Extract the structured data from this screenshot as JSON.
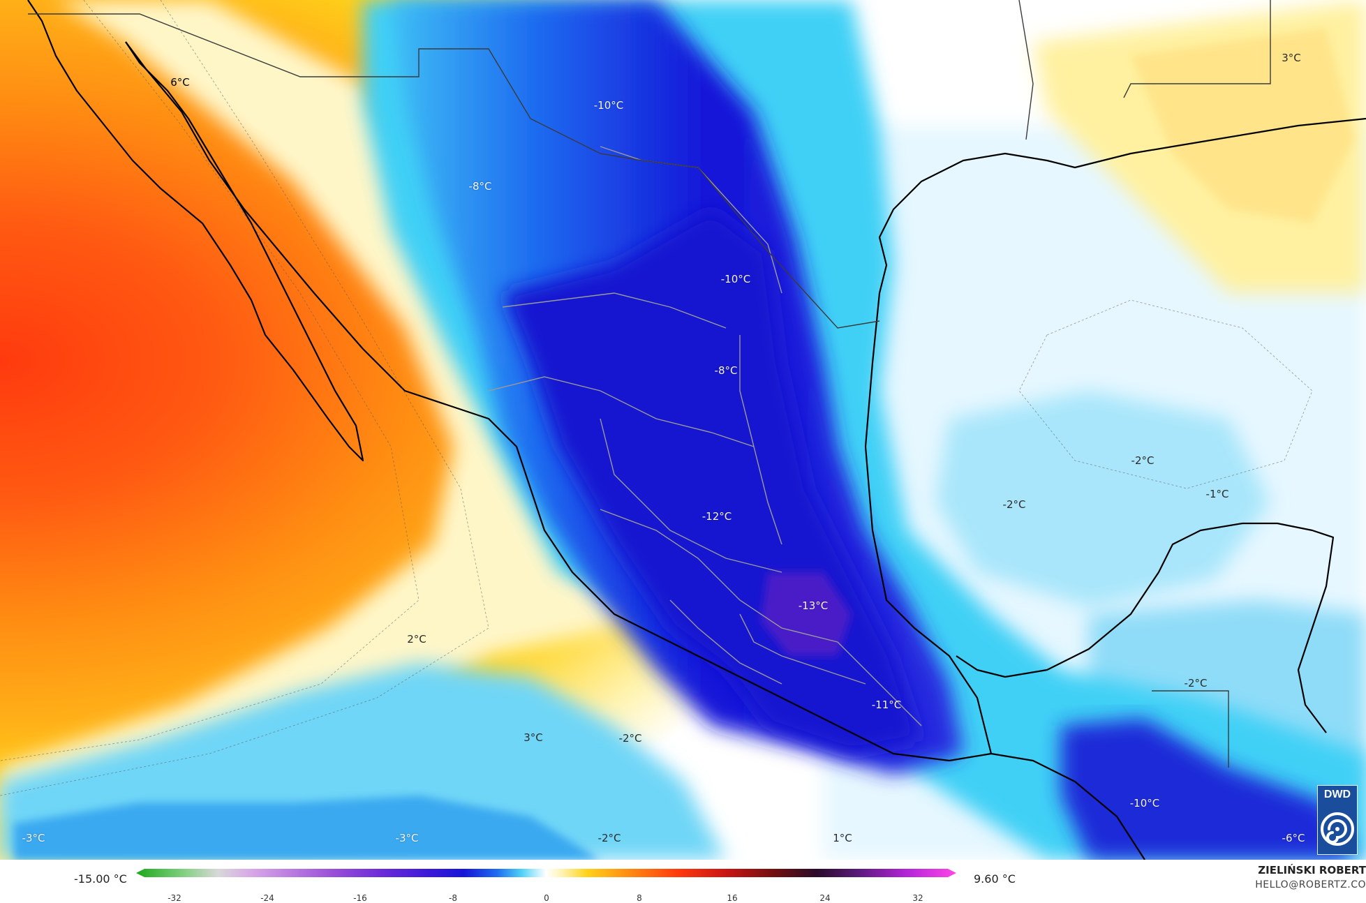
{
  "map": {
    "labels": [
      {
        "text": "6°C",
        "tone": "dark"
      },
      {
        "text": "-10°C",
        "tone": "light"
      },
      {
        "text": "-8°C",
        "tone": "light"
      },
      {
        "text": "-10°C",
        "tone": "light"
      },
      {
        "text": "-8°C",
        "tone": "light"
      },
      {
        "text": "-12°C",
        "tone": "light"
      },
      {
        "text": "-13°C",
        "tone": "light"
      },
      {
        "text": "-11°C",
        "tone": "light"
      },
      {
        "text": "-10°C",
        "tone": "light"
      },
      {
        "text": "-6°C",
        "tone": "light"
      },
      {
        "text": "3°C",
        "tone": "dark"
      },
      {
        "text": "-2°C",
        "tone": "dark"
      },
      {
        "text": "-2°C",
        "tone": "dark"
      },
      {
        "text": "-1°C",
        "tone": "dark"
      },
      {
        "text": "-2°C",
        "tone": "dark"
      },
      {
        "text": "2°C",
        "tone": "dark"
      },
      {
        "text": "3°C",
        "tone": "dark"
      },
      {
        "text": "-2°C",
        "tone": "dark"
      },
      {
        "text": "-2°C",
        "tone": "dark"
      },
      {
        "text": "1°C",
        "tone": "dark"
      },
      {
        "text": "-3°C",
        "tone": "light"
      },
      {
        "text": "-3°C",
        "tone": "light"
      }
    ]
  },
  "legend": {
    "min_label": "-15.00 °C",
    "max_label": "9.60 °C",
    "ticks": [
      "-32",
      "-24",
      "-16",
      "-8",
      "0",
      "8",
      "16",
      "24",
      "32"
    ]
  },
  "credits": {
    "author": "ZIELIŃSKI ROBERT",
    "email": "HELLO@ROBERTZ.CO",
    "logo_text": "DWD"
  },
  "colors": {
    "ocean_warm_center": "#ff3a0e",
    "warm_orange": "#ff8c12",
    "warm_yellow": "#ffd21a",
    "pale_yellow": "#fff3b0",
    "white": "#ffffff",
    "pale_cyan": "#dff5ff",
    "cyan": "#4fd2f5",
    "blue": "#1e6cf0",
    "deep_blue": "#1616d8",
    "purple": "#5a1fd0",
    "coast": "#000000",
    "borders": "#9a9a9a",
    "dwd_blue": "#1a4d9c"
  }
}
